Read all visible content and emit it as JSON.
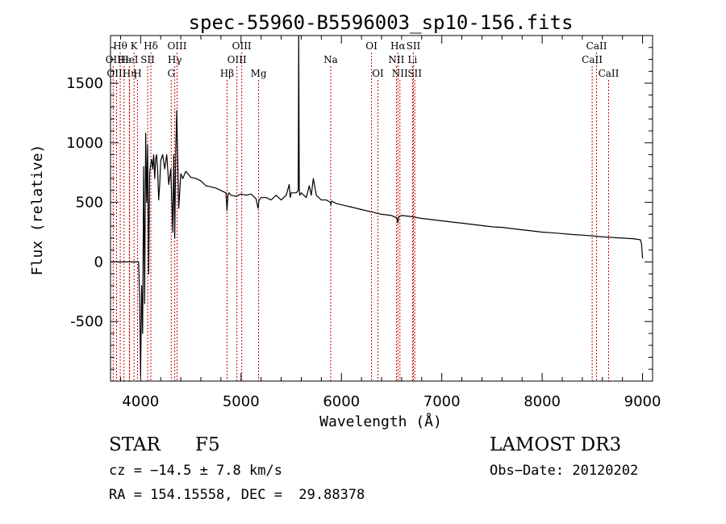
{
  "chart_data": {
    "type": "line",
    "title": "spec-55960-B5596003_sp10-156.fits",
    "xlabel": "Wavelength (Å)",
    "ylabel": "Flux (relative)",
    "xlim": [
      3700,
      9100
    ],
    "ylim": [
      -1000,
      1900
    ],
    "xticks": [
      4000,
      5000,
      6000,
      7000,
      8000,
      9000
    ],
    "yticks": [
      -500,
      0,
      500,
      1000,
      1500
    ],
    "series": [
      {
        "name": "flux",
        "x": [
          3700,
          3800,
          3900,
          3950,
          3980,
          3990,
          4000,
          4010,
          4020,
          4030,
          4040,
          4050,
          4060,
          4070,
          4080,
          4090,
          4100,
          4110,
          4120,
          4130,
          4140,
          4150,
          4160,
          4170,
          4180,
          4190,
          4200,
          4220,
          4240,
          4260,
          4280,
          4300,
          4320,
          4330,
          4340,
          4350,
          4360,
          4380,
          4400,
          4420,
          4450,
          4500,
          4550,
          4600,
          4650,
          4700,
          4750,
          4800,
          4850,
          4860,
          4870,
          4880,
          4900,
          4950,
          5000,
          5050,
          5100,
          5150,
          5170,
          5180,
          5200,
          5250,
          5300,
          5350,
          5400,
          5450,
          5480,
          5490,
          5500,
          5550,
          5570,
          5575,
          5580,
          5585,
          5600,
          5650,
          5680,
          5700,
          5720,
          5750,
          5800,
          5850,
          5890,
          5895,
          5900,
          5950,
          6000,
          6100,
          6200,
          6300,
          6400,
          6500,
          6550,
          6563,
          6570,
          6600,
          6700,
          6800,
          6900,
          7000,
          7100,
          7200,
          7300,
          7400,
          7500,
          7600,
          7700,
          7800,
          7900,
          8000,
          8100,
          8200,
          8300,
          8400,
          8500,
          8600,
          8700,
          8800,
          8900,
          8950,
          8980,
          8990,
          9000
        ],
        "y": [
          0,
          0,
          0,
          0,
          0,
          -300,
          -950,
          -200,
          -600,
          800,
          -350,
          1080,
          500,
          980,
          -100,
          750,
          820,
          860,
          780,
          900,
          700,
          870,
          900,
          760,
          520,
          650,
          850,
          900,
          780,
          900,
          650,
          780,
          250,
          900,
          200,
          920,
          1270,
          450,
          740,
          700,
          760,
          710,
          700,
          680,
          640,
          630,
          620,
          600,
          580,
          430,
          560,
          580,
          560,
          550,
          570,
          560,
          570,
          530,
          450,
          520,
          540,
          540,
          520,
          560,
          520,
          560,
          650,
          540,
          580,
          580,
          600,
          1900,
          600,
          560,
          580,
          540,
          640,
          560,
          700,
          560,
          520,
          520,
          500,
          480,
          510,
          490,
          480,
          460,
          440,
          420,
          400,
          390,
          370,
          330,
          380,
          390,
          380,
          365,
          355,
          345,
          335,
          325,
          315,
          305,
          295,
          290,
          280,
          270,
          260,
          250,
          245,
          238,
          230,
          225,
          218,
          210,
          205,
          200,
          195,
          190,
          185,
          150,
          30
        ]
      }
    ],
    "lines": [
      {
        "label": "Hθ",
        "x": 3797,
        "row": 1
      },
      {
        "label": "OII",
        "x": 3727,
        "row": 2
      },
      {
        "label": "OIII",
        "x": 3760,
        "row": 3
      },
      {
        "label": "Hε",
        "x": 3835,
        "row": 2
      },
      {
        "label": "Hη",
        "x": 3889,
        "row": 3
      },
      {
        "label": "K",
        "x": 3934,
        "row": 1
      },
      {
        "label": "HeI",
        "x": 3888,
        "row": 2
      },
      {
        "label": "SII",
        "x": 4070,
        "row": 2
      },
      {
        "label": "H",
        "x": 3969,
        "row": 3
      },
      {
        "label": "Hδ",
        "x": 4102,
        "row": 1
      },
      {
        "label": "OIII",
        "x": 4363,
        "row": 1
      },
      {
        "label": "Hγ",
        "x": 4340,
        "row": 2
      },
      {
        "label": "G",
        "x": 4305,
        "row": 3
      },
      {
        "label": "Hβ",
        "x": 4861,
        "row": 3
      },
      {
        "label": "OIII",
        "x": 5007,
        "row": 1
      },
      {
        "label": "OIII",
        "x": 4959,
        "row": 2
      },
      {
        "label": "Mg",
        "x": 5175,
        "row": 3
      },
      {
        "label": "Na",
        "x": 5893,
        "row": 2
      },
      {
        "label": "OI",
        "x": 6300,
        "row": 1
      },
      {
        "label": "OI",
        "x": 6364,
        "row": 3
      },
      {
        "label": "Hα",
        "x": 6563,
        "row": 1
      },
      {
        "label": "NII",
        "x": 6548,
        "row": 2
      },
      {
        "label": "NII",
        "x": 6583,
        "row": 3
      },
      {
        "label": "SII",
        "x": 6717,
        "row": 1
      },
      {
        "label": "Li",
        "x": 6708,
        "row": 2
      },
      {
        "label": "SII",
        "x": 6731,
        "row": 3
      },
      {
        "label": "CaII",
        "x": 8542,
        "row": 1
      },
      {
        "label": "CaII",
        "x": 8498,
        "row": 2
      },
      {
        "label": "CaII",
        "x": 8662,
        "row": 3
      }
    ],
    "colors": {
      "line_marker": "#cc0000",
      "spectrum": "#000000"
    }
  },
  "info": {
    "object_class": "STAR",
    "subclass": "F5",
    "survey": "LAMOST DR3",
    "redshift_text": "cz = −14.5 ± 7.8 km/s",
    "obs_date_text": "Obs−Date: 20120202",
    "coords_text": "RA = 154.15558, DEC =  29.88378"
  }
}
